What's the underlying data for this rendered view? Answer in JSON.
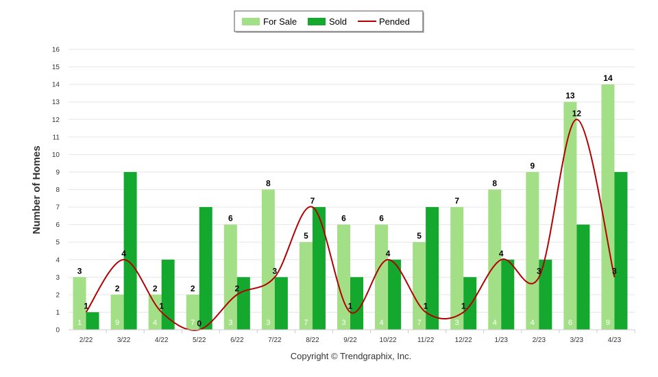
{
  "chart_data": {
    "type": "bar",
    "ylabel": "Number of Homes",
    "xlabel": "",
    "ylim": [
      0,
      16
    ],
    "yticks": [
      "0",
      "1",
      "2",
      "3",
      "4",
      "5",
      "6",
      "7",
      "8",
      "9",
      "10",
      "11",
      "12",
      "13",
      "14",
      "15",
      "16"
    ],
    "grid": true,
    "legend_position": "top-center",
    "categories": [
      "2/22",
      "3/22",
      "4/22",
      "5/22",
      "6/22",
      "7/22",
      "8/22",
      "9/22",
      "10/22",
      "11/22",
      "12/22",
      "1/23",
      "2/23",
      "3/23",
      "4/23"
    ],
    "series": [
      {
        "name": "For Sale",
        "kind": "bar",
        "color": "#a3df86",
        "values": [
          3,
          2,
          2,
          2,
          6,
          8,
          5,
          6,
          6,
          5,
          7,
          8,
          9,
          13,
          14
        ]
      },
      {
        "name": "Sold",
        "kind": "bar",
        "color": "#14a82e",
        "values": [
          1,
          9,
          4,
          7,
          3,
          3,
          7,
          3,
          4,
          7,
          3,
          4,
          4,
          6,
          9
        ]
      },
      {
        "name": "Pended",
        "kind": "line",
        "color": "#b20000",
        "values": [
          1,
          4,
          1,
          0,
          2,
          3,
          7,
          1,
          4,
          1,
          1,
          4,
          3,
          12,
          3
        ]
      }
    ],
    "footer": "Copyright © Trendgraphix, Inc."
  }
}
